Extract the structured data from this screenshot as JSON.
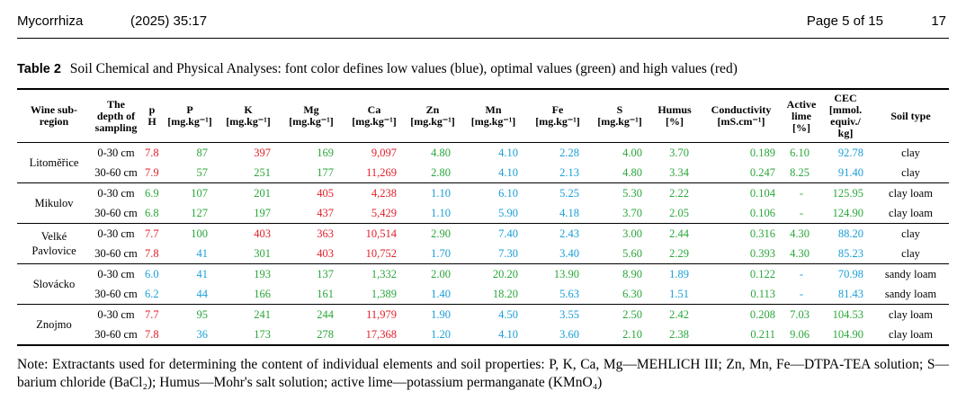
{
  "header": {
    "journal": "Mycorrhiza",
    "year_vol": "(2025) 35:17",
    "page": "Page 5 of 15",
    "page_num": "17"
  },
  "table": {
    "label": "Table 2",
    "caption": "Soil Chemical and Physical Analyses: font color defines low values (blue), optimal values (green) and high values (red)",
    "columns": [
      [
        "Wine sub-",
        "region"
      ],
      [
        "The",
        "depth of",
        "sampling"
      ],
      [
        "p",
        "H"
      ],
      [
        "P",
        "[mg.kg⁻¹]"
      ],
      [
        "K",
        "[mg.kg⁻¹]"
      ],
      [
        "Mg",
        "[mg.kg⁻¹]"
      ],
      [
        "Ca",
        "[mg.kg⁻¹]"
      ],
      [
        "Zn",
        "[mg.kg⁻¹]"
      ],
      [
        "Mn",
        "[mg.kg⁻¹]"
      ],
      [
        "Fe",
        "[mg.kg⁻¹]"
      ],
      [
        "S",
        "[mg.kg⁻¹]"
      ],
      [
        "Humus",
        "[%]"
      ],
      [
        "Conductivity",
        "[mS.cm⁻¹]"
      ],
      [
        "Active",
        "lime",
        "[%]"
      ],
      [
        "CEC",
        "[mmol.",
        "equiv./",
        "kg]"
      ],
      [
        "Soil type"
      ]
    ],
    "colors": {
      "L": "#1a9fd6",
      "O": "#2aa63a",
      "H": "#e0202a"
    },
    "groups": [
      {
        "region": [
          "Litoměřice"
        ],
        "rows": [
          {
            "depth": "0-30 cm",
            "cells": [
              [
                "7.8",
                "H"
              ],
              [
                "87",
                "O"
              ],
              [
                "397",
                "H"
              ],
              [
                "169",
                "O"
              ],
              [
                "9,097",
                "H"
              ],
              [
                "4.80",
                "O"
              ],
              [
                "4.10",
                "L"
              ],
              [
                "2.28",
                "L"
              ],
              [
                "4.00",
                "O"
              ],
              [
                "3.70",
                "O"
              ],
              [
                "0.189",
                "O"
              ],
              [
                "6.10",
                "O"
              ],
              [
                "92.78",
                "L"
              ]
            ],
            "soil": "clay"
          },
          {
            "depth": "30-60 cm",
            "cells": [
              [
                "7.9",
                "H"
              ],
              [
                "57",
                "O"
              ],
              [
                "251",
                "O"
              ],
              [
                "177",
                "O"
              ],
              [
                "11,269",
                "H"
              ],
              [
                "2.80",
                "O"
              ],
              [
                "4.10",
                "L"
              ],
              [
                "2.13",
                "L"
              ],
              [
                "4.80",
                "O"
              ],
              [
                "3.34",
                "O"
              ],
              [
                "0.247",
                "O"
              ],
              [
                "8.25",
                "O"
              ],
              [
                "91.40",
                "L"
              ]
            ],
            "soil": "clay"
          }
        ]
      },
      {
        "region": [
          "Mikulov"
        ],
        "rows": [
          {
            "depth": "0-30 cm",
            "cells": [
              [
                "6.9",
                "O"
              ],
              [
                "107",
                "O"
              ],
              [
                "201",
                "O"
              ],
              [
                "405",
                "H"
              ],
              [
                "4,238",
                "H"
              ],
              [
                "1.10",
                "L"
              ],
              [
                "6.10",
                "L"
              ],
              [
                "5.25",
                "L"
              ],
              [
                "5.30",
                "O"
              ],
              [
                "2.22",
                "O"
              ],
              [
                "0.104",
                "O"
              ],
              [
                "-",
                "O"
              ],
              [
                "125.95",
                "O"
              ]
            ],
            "soil": "clay loam"
          },
          {
            "depth": "30-60 cm",
            "cells": [
              [
                "6.8",
                "O"
              ],
              [
                "127",
                "O"
              ],
              [
                "197",
                "O"
              ],
              [
                "437",
                "H"
              ],
              [
                "5,429",
                "H"
              ],
              [
                "1.10",
                "L"
              ],
              [
                "5.90",
                "L"
              ],
              [
                "4.18",
                "L"
              ],
              [
                "3.70",
                "O"
              ],
              [
                "2.05",
                "O"
              ],
              [
                "0.106",
                "O"
              ],
              [
                "-",
                "O"
              ],
              [
                "124.90",
                "O"
              ]
            ],
            "soil": "clay loam"
          }
        ]
      },
      {
        "region": [
          "Velké",
          "Pavlovice"
        ],
        "rows": [
          {
            "depth": "0-30 cm",
            "cells": [
              [
                "7.7",
                "H"
              ],
              [
                "100",
                "O"
              ],
              [
                "403",
                "H"
              ],
              [
                "363",
                "H"
              ],
              [
                "10,514",
                "H"
              ],
              [
                "2.90",
                "O"
              ],
              [
                "7.40",
                "L"
              ],
              [
                "2.43",
                "L"
              ],
              [
                "3.00",
                "O"
              ],
              [
                "2.44",
                "O"
              ],
              [
                "0.316",
                "O"
              ],
              [
                "4.30",
                "O"
              ],
              [
                "88.20",
                "L"
              ]
            ],
            "soil": "clay"
          },
          {
            "depth": "30-60 cm",
            "cells": [
              [
                "7.8",
                "H"
              ],
              [
                "41",
                "L"
              ],
              [
                "301",
                "O"
              ],
              [
                "403",
                "H"
              ],
              [
                "10,752",
                "H"
              ],
              [
                "1.70",
                "L"
              ],
              [
                "7.30",
                "L"
              ],
              [
                "3.40",
                "L"
              ],
              [
                "5.60",
                "O"
              ],
              [
                "2.29",
                "O"
              ],
              [
                "0.393",
                "O"
              ],
              [
                "4.30",
                "O"
              ],
              [
                "85.23",
                "L"
              ]
            ],
            "soil": "clay"
          }
        ]
      },
      {
        "region": [
          "Slovácko"
        ],
        "rows": [
          {
            "depth": "0-30 cm",
            "cells": [
              [
                "6.0",
                "L"
              ],
              [
                "41",
                "L"
              ],
              [
                "193",
                "O"
              ],
              [
                "137",
                "O"
              ],
              [
                "1,332",
                "O"
              ],
              [
                "2.00",
                "O"
              ],
              [
                "20.20",
                "O"
              ],
              [
                "13.90",
                "O"
              ],
              [
                "8.90",
                "O"
              ],
              [
                "1.89",
                "L"
              ],
              [
                "0.122",
                "O"
              ],
              [
                "-",
                "L"
              ],
              [
                "70.98",
                "L"
              ]
            ],
            "soil": "sandy loam"
          },
          {
            "depth": "30-60 cm",
            "cells": [
              [
                "6.2",
                "L"
              ],
              [
                "44",
                "L"
              ],
              [
                "166",
                "O"
              ],
              [
                "161",
                "O"
              ],
              [
                "1,389",
                "O"
              ],
              [
                "1.40",
                "L"
              ],
              [
                "18.20",
                "O"
              ],
              [
                "5.63",
                "L"
              ],
              [
                "6.30",
                "O"
              ],
              [
                "1.51",
                "L"
              ],
              [
                "0.113",
                "O"
              ],
              [
                "-",
                "L"
              ],
              [
                "81.43",
                "L"
              ]
            ],
            "soil": "sandy loam"
          }
        ]
      },
      {
        "region": [
          "Znojmo"
        ],
        "rows": [
          {
            "depth": "0-30 cm",
            "cells": [
              [
                "7.7",
                "H"
              ],
              [
                "95",
                "O"
              ],
              [
                "241",
                "O"
              ],
              [
                "244",
                "O"
              ],
              [
                "11,979",
                "H"
              ],
              [
                "1.90",
                "L"
              ],
              [
                "4.50",
                "L"
              ],
              [
                "3.55",
                "L"
              ],
              [
                "2.50",
                "O"
              ],
              [
                "2.42",
                "O"
              ],
              [
                "0.208",
                "O"
              ],
              [
                "7.03",
                "O"
              ],
              [
                "104.53",
                "O"
              ]
            ],
            "soil": "clay loam"
          },
          {
            "depth": "30-60 cm",
            "cells": [
              [
                "7.8",
                "H"
              ],
              [
                "36",
                "L"
              ],
              [
                "173",
                "O"
              ],
              [
                "278",
                "O"
              ],
              [
                "17,368",
                "H"
              ],
              [
                "1.20",
                "L"
              ],
              [
                "4.10",
                "L"
              ],
              [
                "3.60",
                "L"
              ],
              [
                "2.10",
                "O"
              ],
              [
                "2.38",
                "O"
              ],
              [
                "0.211",
                "O"
              ],
              [
                "9.06",
                "O"
              ],
              [
                "104.90",
                "O"
              ]
            ],
            "soil": "clay loam"
          }
        ]
      }
    ]
  },
  "note": "Note: Extractants used for determining the content of individual elements and soil properties: P, K, Ca, Mg—MEHLICH III; Zn, Mn, Fe—DTPA-TEA solution; S—barium chloride (BaCl₂); Humus—Mohr's salt solution; active lime—potassium permanganate (KMnO₄)"
}
